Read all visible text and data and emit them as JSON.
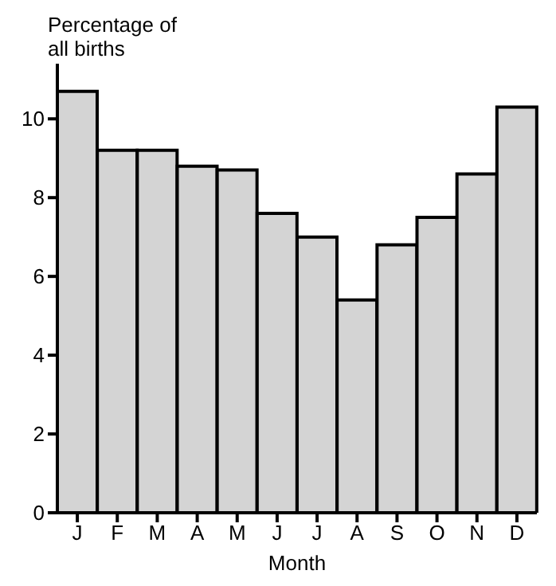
{
  "chart_data": {
    "type": "bar",
    "ylabel": "Percentage of\nall births",
    "xlabel": "Month",
    "categories": [
      "J",
      "F",
      "M",
      "A",
      "M",
      "J",
      "J",
      "A",
      "S",
      "O",
      "N",
      "D"
    ],
    "values": [
      10.7,
      9.2,
      9.2,
      8.8,
      8.7,
      7.6,
      7.0,
      5.4,
      6.8,
      7.5,
      8.6,
      10.3
    ],
    "color": "#d4d4d4",
    "ylim": [
      0,
      11.4
    ],
    "yticks": [
      0,
      2,
      4,
      6,
      8,
      10
    ]
  }
}
